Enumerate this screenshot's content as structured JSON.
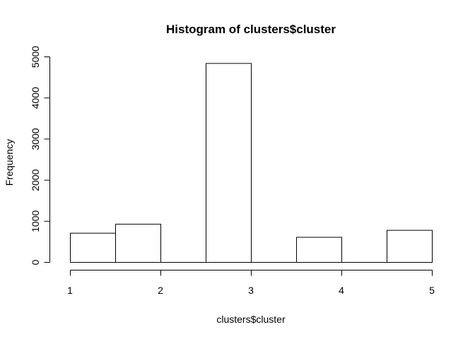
{
  "chart_data": {
    "type": "bar",
    "title": "Histogram of clusters$cluster",
    "xlabel": "clusters$cluster",
    "ylabel": "Frequency",
    "bins": [
      {
        "x0": 1.0,
        "x1": 1.5,
        "value": 710
      },
      {
        "x0": 1.5,
        "x1": 2.0,
        "value": 930
      },
      {
        "x0": 2.0,
        "x1": 2.5,
        "value": 0
      },
      {
        "x0": 2.5,
        "x1": 3.0,
        "value": 4840
      },
      {
        "x0": 3.0,
        "x1": 3.5,
        "value": 0
      },
      {
        "x0": 3.5,
        "x1": 4.0,
        "value": 610
      },
      {
        "x0": 4.0,
        "x1": 4.5,
        "value": 0
      },
      {
        "x0": 4.5,
        "x1": 5.0,
        "value": 780
      }
    ],
    "xlim": [
      1,
      5
    ],
    "ylim": [
      0,
      5000
    ],
    "xticks": [
      1,
      2,
      3,
      4,
      5
    ],
    "yticks": [
      0,
      1000,
      2000,
      3000,
      4000,
      5000
    ],
    "grid": false,
    "bar_fill": "#ffffff",
    "bar_stroke": "#000000"
  }
}
